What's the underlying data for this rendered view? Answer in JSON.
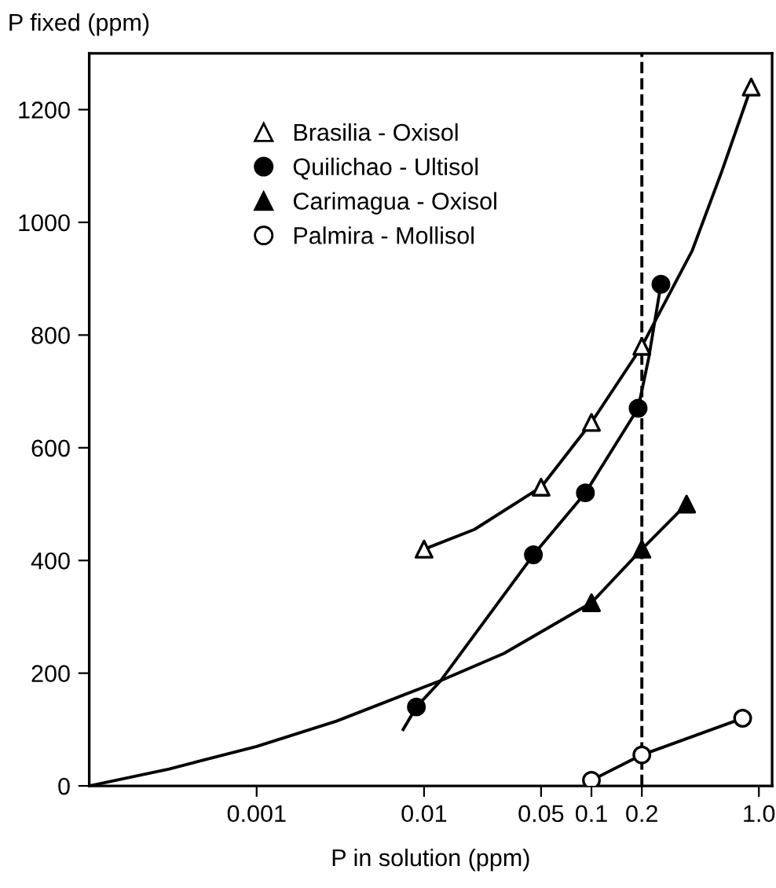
{
  "chart_data": {
    "type": "line",
    "xlabel": "P in solution (ppm)",
    "ylabel": "P fixed (ppm)",
    "log": "x",
    "xlim": [
      0.0001,
      1.2
    ],
    "ylim": [
      0,
      1300
    ],
    "xticks": [
      0.001,
      0.01,
      0.05,
      0.1,
      0.2,
      {
        "value": 1,
        "label": "1.0"
      }
    ],
    "yticks": [
      0,
      200,
      400,
      600,
      800,
      1000,
      1200
    ],
    "grid": false,
    "legend": "top left",
    "ref_lines": [
      {
        "axis": "x",
        "value": 0.2,
        "color": "#000000",
        "line_style": "dashed"
      }
    ],
    "series": [
      {
        "color": "#000000",
        "marker": "none",
        "line_style": "solid",
        "x": [
          0.01,
          0.02,
          0.05,
          0.1,
          0.2,
          0.4,
          0.6,
          0.9
        ],
        "values": [
          420,
          455,
          530,
          645,
          780,
          950,
          1090,
          1240
        ]
      },
      {
        "color": "#000000",
        "marker": "none",
        "line_style": "solid",
        "x": [
          0.0075,
          0.009,
          0.0126,
          0.045,
          0.092,
          0.19,
          0.22,
          0.26
        ],
        "values": [
          100,
          140,
          187,
          410,
          520,
          670,
          760,
          890
        ]
      },
      {
        "color": "#000000",
        "marker": "none",
        "line_style": "solid",
        "x": [
          0.0001,
          0.0003,
          0.001,
          0.003,
          0.0126,
          0.03,
          0.1,
          0.2,
          0.37
        ],
        "values": [
          0,
          30,
          70,
          115,
          187,
          235,
          325,
          420,
          500
        ]
      },
      {
        "color": "#000000",
        "marker": "none",
        "line_style": "solid",
        "x": [
          0.1,
          0.2,
          0.8
        ],
        "values": [
          10,
          55,
          120
        ]
      },
      {
        "type": "scatter",
        "name": "Brasilia - Oxisol",
        "color": "#ffffff",
        "marker": "triangle",
        "x": [
          0.01,
          0.05,
          0.1,
          0.2,
          0.9
        ],
        "values": [
          420,
          530,
          645,
          780,
          1240
        ]
      },
      {
        "type": "scatter",
        "name": "Quilichao - Ultisol",
        "color": "#000000",
        "marker": "circle",
        "x": [
          0.009,
          0.045,
          0.092,
          0.19,
          0.26
        ],
        "values": [
          140,
          410,
          520,
          670,
          890
        ]
      },
      {
        "type": "scatter",
        "name": "Carimagua - Oxisol",
        "color": "#000000",
        "marker": "triangle",
        "x": [
          0.1,
          0.2,
          0.37
        ],
        "values": [
          325,
          420,
          500
        ]
      },
      {
        "type": "scatter",
        "name": "Palmira - Mollisol",
        "color": "#ffffff",
        "marker": "circle",
        "x": [
          0.1,
          0.2,
          0.8
        ],
        "values": [
          10,
          55,
          120
        ]
      }
    ]
  }
}
